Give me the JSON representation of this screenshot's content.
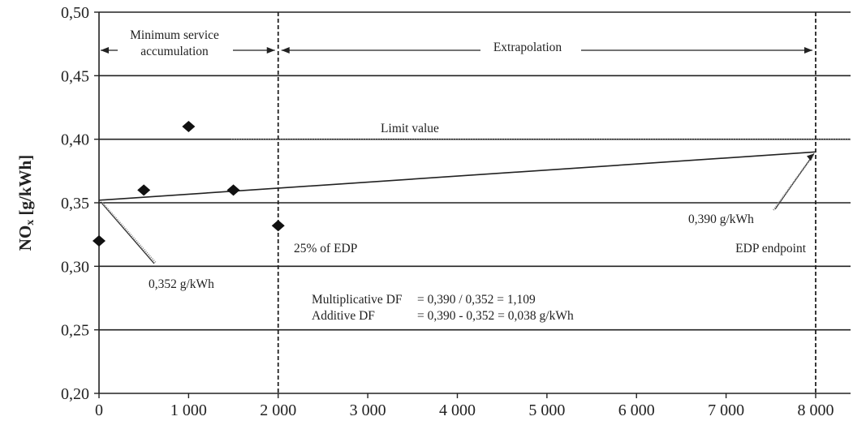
{
  "chart_data": {
    "type": "scatter",
    "ylabel": "NOx [g/kWh]",
    "ylabel_main": "NO",
    "ylabel_sub": "x",
    "ylabel_unit": " [g/kWh]",
    "xlim": [
      0,
      8000
    ],
    "ylim": [
      0.2,
      0.5
    ],
    "x_ticks": [
      0,
      1000,
      2000,
      3000,
      4000,
      5000,
      6000,
      7000,
      8000
    ],
    "x_tick_labels": [
      "0",
      "1 000",
      "2 000",
      "3 000",
      "4 000",
      "5 000",
      "6 000",
      "7 000",
      "8 000"
    ],
    "y_ticks": [
      0.2,
      0.25,
      0.3,
      0.35,
      0.4,
      0.45,
      0.5
    ],
    "y_tick_labels": [
      "0,20",
      "0,25",
      "0,30",
      "0,35",
      "0,40",
      "0,45",
      "0,50"
    ],
    "grid": "horizontal",
    "series": [
      {
        "points": [
          {
            "x": 0,
            "y": 0.32
          },
          {
            "x": 500,
            "y": 0.36
          },
          {
            "x": 1000,
            "y": 0.41
          },
          {
            "x": 1500,
            "y": 0.36
          },
          {
            "x": 2000,
            "y": 0.332
          }
        ]
      }
    ],
    "trend_line": {
      "x": [
        0,
        8000
      ],
      "y": [
        0.352,
        0.39
      ]
    },
    "limit_value": 0.4,
    "vertical_markers": [
      2000,
      8000
    ],
    "annotations": {
      "min_service": [
        "Minimum service",
        "accumulation"
      ],
      "extrapolation": "Extrapolation",
      "limit_value": "Limit value",
      "edp25": "25% of EDP",
      "edp_endpoint": "EDP endpoint",
      "start_value": "0,352 g/kWh",
      "end_value": "0,390 g/kWh",
      "formula_lines": [
        [
          "Multiplicative DF",
          "= 0,390 / 0,352 = 1,109"
        ],
        [
          "Additive DF",
          "= 0,390 - 0,352 = 0,038 g/kWh"
        ]
      ]
    }
  }
}
